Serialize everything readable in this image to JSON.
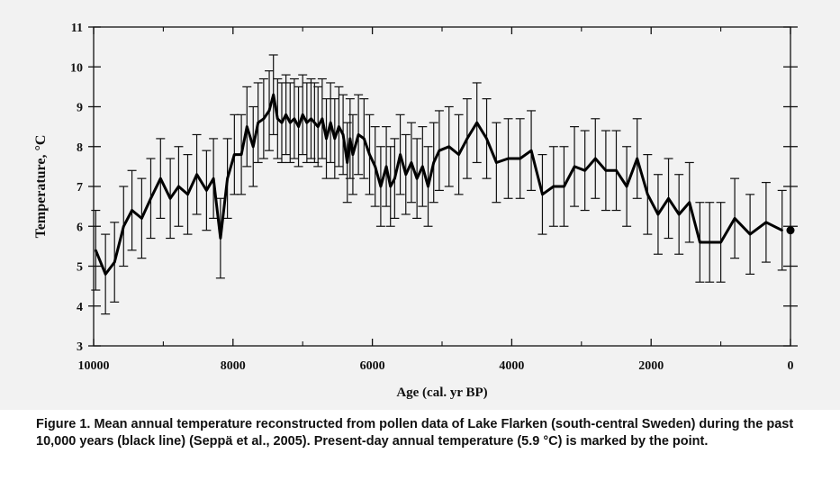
{
  "caption": {
    "lead": "Figure 1.",
    "text": " Mean annual temperature reconstructed from pollen data of Lake Flarken (south-central Sweden) during the past 10,000 years (black line) (Seppä et al., 2005). Present-day annual temperature (5.9 °C) is marked by the point."
  },
  "chart_data": {
    "type": "line",
    "xlabel": "Age (cal. yr BP)",
    "ylabel": "Temperature, °C",
    "xlim": [
      10000,
      0
    ],
    "ylim": [
      3,
      11
    ],
    "x_ticks": [
      "10000",
      "8000",
      "6000",
      "4000",
      "2000",
      "0"
    ],
    "y_ticks": [
      "3",
      "4",
      "5",
      "6",
      "7",
      "8",
      "9",
      "10",
      "11"
    ],
    "grid": false,
    "series": [
      {
        "color": "#000000",
        "x": [
          9970,
          9830,
          9700,
          9570,
          9450,
          9310,
          9180,
          9040,
          8900,
          8780,
          8650,
          8520,
          8380,
          8280,
          8180,
          8080,
          7980,
          7880,
          7800,
          7710,
          7640,
          7560,
          7480,
          7420,
          7360,
          7300,
          7240,
          7180,
          7120,
          7060,
          7000,
          6940,
          6880,
          6830,
          6780,
          6720,
          6660,
          6600,
          6540,
          6480,
          6420,
          6360,
          6320,
          6280,
          6200,
          6120,
          6040,
          5960,
          5880,
          5800,
          5740,
          5680,
          5600,
          5520,
          5440,
          5360,
          5280,
          5200,
          5120,
          5040,
          4900,
          4760,
          4640,
          4500,
          4360,
          4220,
          4050,
          3880,
          3720,
          3560,
          3400,
          3250,
          3100,
          2950,
          2800,
          2650,
          2500,
          2350,
          2200,
          2050,
          1900,
          1750,
          1600,
          1450,
          1300,
          1160,
          1000,
          800,
          580,
          350,
          120
        ],
        "y": [
          5.4,
          4.8,
          5.1,
          6.0,
          6.4,
          6.2,
          6.7,
          7.2,
          6.7,
          7.0,
          6.8,
          7.3,
          6.9,
          7.2,
          5.7,
          7.2,
          7.8,
          7.8,
          8.5,
          8.0,
          8.6,
          8.7,
          8.9,
          9.3,
          8.7,
          8.6,
          8.8,
          8.6,
          8.7,
          8.5,
          8.8,
          8.6,
          8.7,
          8.6,
          8.5,
          8.7,
          8.2,
          8.6,
          8.2,
          8.5,
          8.3,
          7.6,
          8.2,
          7.8,
          8.3,
          8.2,
          7.8,
          7.5,
          7.0,
          7.5,
          7.0,
          7.2,
          7.8,
          7.3,
          7.6,
          7.2,
          7.5,
          7.0,
          7.6,
          7.9,
          8.0,
          7.8,
          8.2,
          8.6,
          8.2,
          7.6,
          7.7,
          7.7,
          7.9,
          6.8,
          7.0,
          7.0,
          7.5,
          7.4,
          7.7,
          7.4,
          7.4,
          7.0,
          7.7,
          6.8,
          6.3,
          6.7,
          6.3,
          6.6,
          5.6,
          5.6,
          5.6,
          6.2,
          5.8,
          6.1,
          5.9
        ],
        "error": 1.0
      }
    ],
    "present_day_point": {
      "x": 0,
      "y": 5.9
    }
  }
}
